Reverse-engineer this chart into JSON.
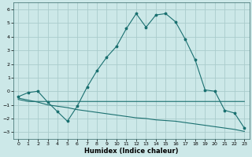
{
  "xlabel": "Humidex (Indice chaleur)",
  "bg_color": "#cce8e8",
  "grid_color": "#aacccc",
  "line_color": "#1a7070",
  "xlim": [
    -0.5,
    23.5
  ],
  "ylim": [
    -3.5,
    6.5
  ],
  "xticks": [
    0,
    1,
    2,
    3,
    4,
    5,
    6,
    7,
    8,
    9,
    10,
    11,
    12,
    13,
    14,
    15,
    16,
    17,
    18,
    19,
    20,
    21,
    22,
    23
  ],
  "yticks": [
    -3,
    -2,
    -1,
    0,
    1,
    2,
    3,
    4,
    5,
    6
  ],
  "curve1_x": [
    0,
    1,
    2,
    3,
    4,
    5,
    6,
    7,
    8,
    9,
    10,
    11,
    12,
    13,
    14,
    15,
    16,
    17,
    18,
    19,
    20,
    21,
    22,
    23
  ],
  "curve1_y": [
    -0.4,
    -0.1,
    0.0,
    -0.8,
    -1.5,
    -2.2,
    -1.1,
    0.3,
    1.5,
    2.5,
    3.3,
    4.6,
    5.7,
    4.7,
    5.6,
    5.7,
    5.1,
    3.8,
    2.3,
    0.1,
    0.0,
    -1.4,
    -1.6,
    -2.7
  ],
  "curve2_x": [
    0,
    1,
    2,
    3,
    4,
    5,
    6,
    7,
    8,
    9,
    10,
    11,
    12,
    13,
    14,
    15,
    16,
    17,
    18,
    19,
    20,
    21,
    22,
    23
  ],
  "curve2_y": [
    -0.6,
    -0.75,
    -0.75,
    -0.75,
    -0.75,
    -0.75,
    -0.75,
    -0.75,
    -0.75,
    -0.75,
    -0.75,
    -0.75,
    -0.75,
    -0.75,
    -0.75,
    -0.75,
    -0.75,
    -0.75,
    -0.75,
    -0.75,
    -0.75,
    -0.75,
    -0.75,
    -0.75
  ],
  "curve3_x": [
    0,
    1,
    2,
    3,
    4,
    5,
    6,
    7,
    8,
    9,
    10,
    11,
    12,
    13,
    14,
    15,
    16,
    17,
    18,
    19,
    20,
    21,
    22,
    23
  ],
  "curve3_y": [
    -0.5,
    -0.65,
    -0.8,
    -1.0,
    -1.1,
    -1.2,
    -1.35,
    -1.45,
    -1.55,
    -1.65,
    -1.75,
    -1.85,
    -1.95,
    -2.0,
    -2.1,
    -2.15,
    -2.2,
    -2.3,
    -2.4,
    -2.5,
    -2.6,
    -2.7,
    -2.8,
    -2.95
  ]
}
